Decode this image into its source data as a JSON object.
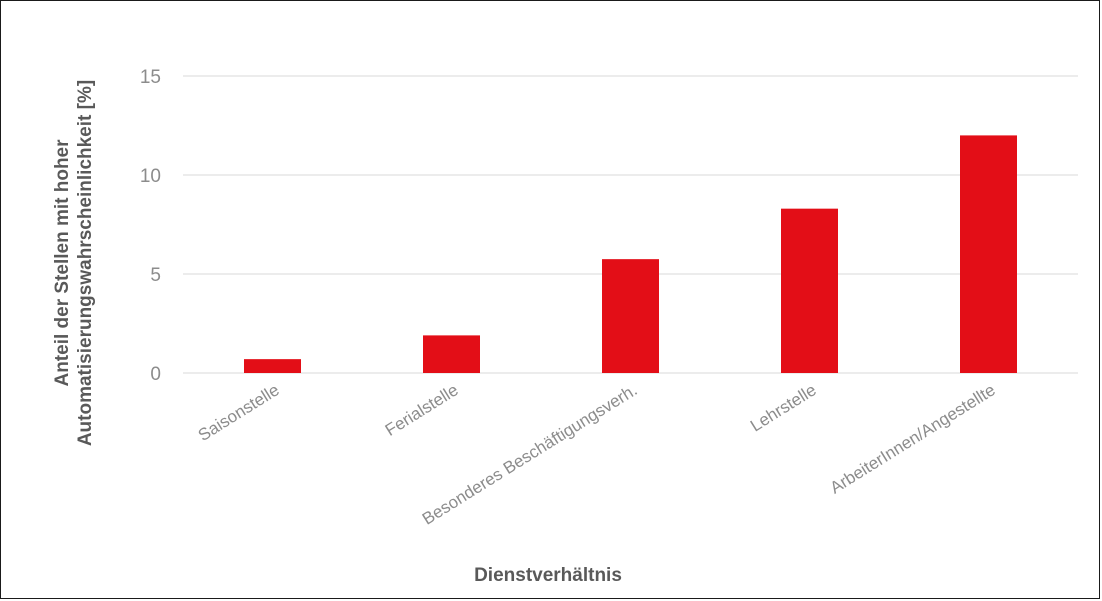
{
  "chart_data": {
    "type": "bar",
    "categories": [
      "Saisonstelle",
      "Ferialstelle",
      "Besonderes Beschäftigungsverh.",
      "Lehrstelle",
      "ArbeiterInnen/Angestellte"
    ],
    "series": [
      {
        "values": [
          0.7,
          1.9,
          5.75,
          8.3,
          12.0
        ]
      }
    ],
    "xlabel": "Dienstverhältnis",
    "ylabel_lines": [
      "Anteil der Stellen mit hoher",
      "Automatisierungswahrscheinlichkeit [%]"
    ],
    "ylim": [
      0,
      15
    ],
    "yticks": [
      0,
      5,
      10,
      15
    ],
    "grid": true,
    "legend": "none",
    "bar_color": "#e30e17",
    "grid_color": "#d9d9d9"
  }
}
